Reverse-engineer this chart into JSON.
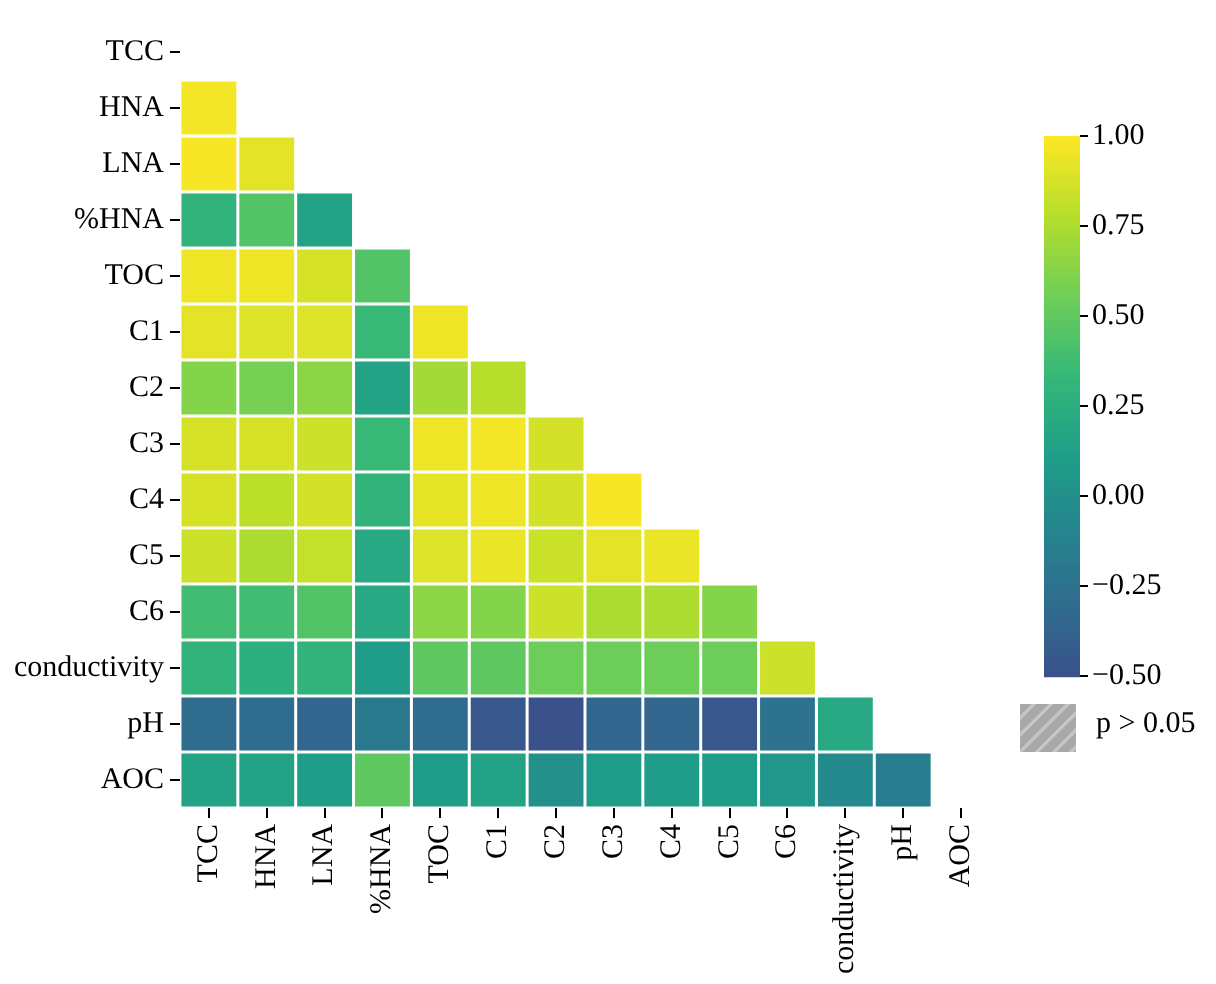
{
  "chart_data": {
    "type": "heatmap",
    "categories": [
      "TCC",
      "HNA",
      "LNA",
      "%HNA",
      "TOC",
      "C1",
      "C2",
      "C3",
      "C4",
      "C5",
      "C6",
      "conductivity",
      "pH",
      "AOC"
    ],
    "y_categories": [
      "TCC",
      "HNA",
      "LNA",
      "%HNA",
      "TOC",
      "C1",
      "C2",
      "C3",
      "C4",
      "C5",
      "C6",
      "conductivity",
      "pH",
      "AOC"
    ],
    "cells": [
      [
        null,
        null,
        null,
        null,
        null,
        null,
        null,
        null,
        null,
        null,
        null,
        null,
        null,
        null
      ],
      [
        0.97,
        null,
        null,
        null,
        null,
        null,
        null,
        null,
        null,
        null,
        null,
        null,
        null,
        null
      ],
      [
        0.98,
        0.92,
        null,
        null,
        null,
        null,
        null,
        null,
        null,
        null,
        null,
        null,
        null,
        null
      ],
      [
        0.3,
        0.45,
        0.15,
        null,
        null,
        null,
        null,
        null,
        null,
        null,
        null,
        null,
        null,
        null
      ],
      [
        0.95,
        0.95,
        0.88,
        0.45,
        null,
        null,
        null,
        null,
        null,
        null,
        null,
        null,
        null,
        null
      ],
      [
        0.92,
        0.9,
        0.9,
        0.35,
        0.95,
        null,
        null,
        null,
        null,
        null,
        null,
        null,
        null,
        null
      ],
      [
        0.62,
        0.58,
        0.65,
        0.15,
        0.72,
        0.78,
        null,
        null,
        null,
        null,
        null,
        null,
        null,
        null
      ],
      [
        0.88,
        0.88,
        0.85,
        0.35,
        0.95,
        0.97,
        0.87,
        null,
        null,
        null,
        null,
        null,
        null,
        null
      ],
      [
        0.88,
        0.8,
        0.87,
        0.3,
        0.93,
        0.95,
        0.87,
        0.98,
        null,
        null,
        null,
        null,
        null,
        null
      ],
      [
        0.85,
        0.75,
        0.82,
        0.2,
        0.9,
        0.94,
        0.84,
        0.92,
        0.94,
        null,
        null,
        null,
        null,
        null
      ],
      [
        0.38,
        0.38,
        0.45,
        0.2,
        0.65,
        0.62,
        0.85,
        0.75,
        0.75,
        0.62,
        null,
        null,
        null,
        null
      ],
      [
        0.3,
        0.25,
        0.3,
        0.1,
        0.5,
        0.5,
        0.55,
        0.55,
        0.55,
        0.55,
        0.85,
        null,
        null,
        null
      ],
      [
        -0.3,
        -0.3,
        -0.35,
        -0.2,
        -0.3,
        -0.45,
        -0.5,
        -0.35,
        -0.35,
        -0.45,
        -0.25,
        0.2,
        null,
        null
      ],
      [
        0.15,
        0.15,
        0.1,
        0.5,
        0.1,
        0.15,
        0.0,
        0.1,
        0.1,
        0.1,
        0.05,
        -0.05,
        -0.15,
        null
      ]
    ],
    "clim": [
      -0.5,
      1
    ],
    "cticks": [
      {
        "value": -0.5,
        "label": "−0.50"
      },
      {
        "value": -0.25,
        "label": "−0.25"
      },
      {
        "value": 0,
        "label": "0.00"
      },
      {
        "value": 0.25,
        "label": "0.25"
      },
      {
        "value": 0.5,
        "label": "0.50"
      },
      {
        "value": 0.75,
        "label": "0.75"
      },
      {
        "value": 1,
        "label": "1.00"
      }
    ],
    "annotations": [
      "p > 0.05"
    ]
  }
}
